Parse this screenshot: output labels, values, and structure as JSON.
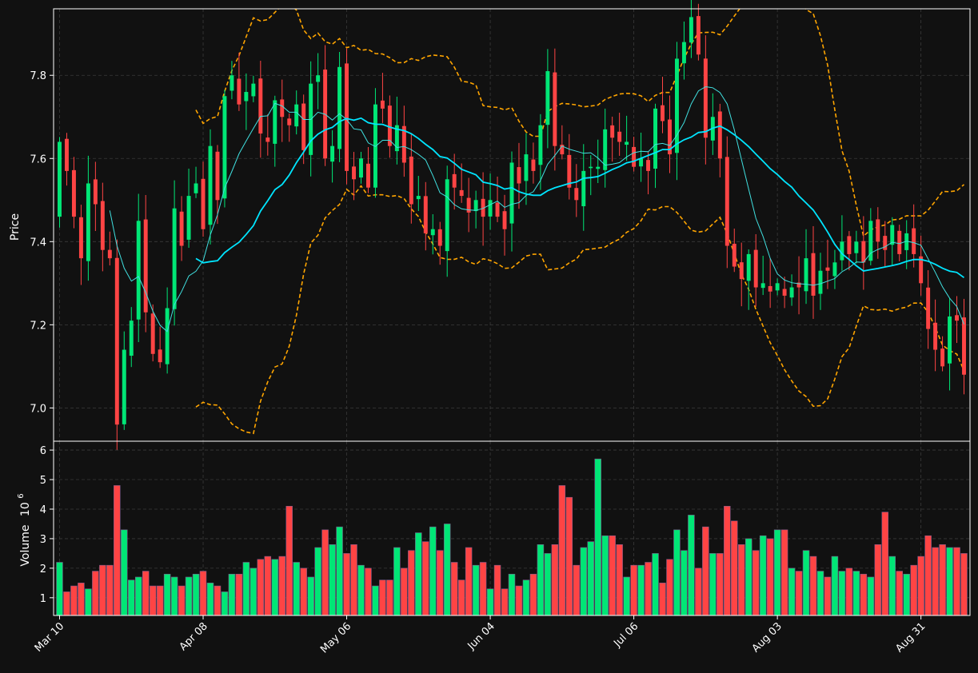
{
  "colors": {
    "background": "#111111",
    "up": "#00e676",
    "down": "#ff4444",
    "ma_fast": "#40e0e0",
    "ma_slow": "#00e5ff",
    "bands": "#ffa500",
    "grid": "#3a3a3a",
    "text": "#ffffff"
  },
  "chart_data": [
    {
      "type": "candlestick",
      "ylabel": "Price",
      "ylim": [
        6.92,
        7.96
      ],
      "yticks": [
        "7.0",
        "7.2",
        "7.4",
        "7.6",
        "7.8"
      ],
      "xticks": [
        {
          "label": "Mar 10",
          "index": 0
        },
        {
          "label": "Apr 08",
          "index": 20
        },
        {
          "label": "May 06",
          "index": 40
        },
        {
          "label": "Jun 04",
          "index": 60
        },
        {
          "label": "Jul 06",
          "index": 80
        },
        {
          "label": "Aug 03",
          "index": 100
        },
        {
          "label": "Aug 31",
          "index": 120
        }
      ],
      "close": [
        7.64,
        7.57,
        7.46,
        7.36,
        7.54,
        7.49,
        7.38,
        7.36,
        6.96,
        7.14,
        7.21,
        7.45,
        7.23,
        7.13,
        7.11,
        7.24,
        7.48,
        7.39,
        7.51,
        7.54,
        7.43,
        7.63,
        7.5,
        7.75,
        7.8,
        7.73,
        7.76,
        7.78,
        7.66,
        7.64,
        7.74,
        7.7,
        7.68,
        7.73,
        7.62,
        7.78,
        7.8,
        7.6,
        7.63,
        7.82,
        7.57,
        7.55,
        7.6,
        7.53,
        7.73,
        7.72,
        7.63,
        7.68,
        7.59,
        7.49,
        7.51,
        7.42,
        7.43,
        7.39,
        7.55,
        7.53,
        7.51,
        7.47,
        7.5,
        7.46,
        7.5,
        7.46,
        7.43,
        7.59,
        7.54,
        7.61,
        7.57,
        7.68,
        7.81,
        7.63,
        7.61,
        7.53,
        7.5,
        7.57,
        7.58,
        7.58,
        7.67,
        7.65,
        7.64,
        7.64,
        7.58,
        7.6,
        7.57,
        7.72,
        7.69,
        7.61,
        7.84,
        7.88,
        7.94,
        7.85,
        7.65,
        7.7,
        7.6,
        7.39,
        7.34,
        7.31,
        7.37,
        7.29,
        7.3,
        7.28,
        7.3,
        7.27,
        7.29,
        7.29,
        7.36,
        7.27,
        7.33,
        7.33,
        7.35,
        7.4,
        7.37,
        7.4,
        7.35,
        7.45,
        7.4,
        7.38,
        7.44,
        7.37,
        7.42,
        7.37,
        7.3,
        7.19,
        7.14,
        7.1,
        7.22,
        7.21,
        7.08
      ],
      "volume": [
        2.2,
        1.2,
        1.4,
        1.5,
        1.3,
        1.9,
        2.1,
        2.1,
        4.8,
        3.3,
        1.6,
        1.7,
        1.9,
        1.4,
        1.4,
        1.8,
        1.7,
        1.4,
        1.7,
        1.8,
        1.9,
        1.5,
        1.4,
        1.2,
        1.8,
        1.8,
        2.2,
        2.0,
        2.3,
        2.4,
        2.3,
        2.4,
        4.1,
        2.2,
        2.0,
        1.7,
        2.7,
        3.3,
        2.8,
        3.4,
        2.5,
        2.8,
        2.1,
        2.0,
        1.4,
        1.6,
        1.6,
        2.7,
        2.0,
        2.6,
        3.2,
        2.9,
        3.4,
        2.6,
        3.5,
        2.2,
        1.6,
        2.7,
        2.1,
        2.2,
        1.3,
        2.1,
        1.3,
        1.8,
        1.4,
        1.6,
        1.8,
        2.8,
        2.5,
        2.8,
        4.8,
        4.4,
        2.1,
        2.7,
        2.9,
        5.7,
        3.1,
        3.1,
        2.8,
        1.7,
        2.1,
        2.1,
        2.2,
        2.5,
        1.5,
        2.3,
        3.3,
        2.6,
        3.8,
        2.0,
        3.4,
        2.5,
        2.5,
        4.1,
        3.6,
        2.8,
        3.0,
        2.6,
        3.1,
        3.0,
        3.3,
        3.3,
        2.0,
        1.9,
        2.6,
        2.4,
        1.9,
        1.7,
        2.4,
        1.9,
        2.0,
        1.9,
        1.8,
        1.7,
        2.8,
        3.9,
        2.4,
        1.9,
        1.8,
        2.1,
        2.4,
        3.1,
        2.7,
        2.8,
        2.7,
        2.7,
        2.5
      ]
    },
    {
      "type": "bar",
      "ylabel": "Volume",
      "yexp": "6",
      "yticks": [
        "1",
        "2",
        "3",
        "4",
        "5",
        "6"
      ],
      "ylim": [
        0.4,
        6.3
      ]
    }
  ]
}
